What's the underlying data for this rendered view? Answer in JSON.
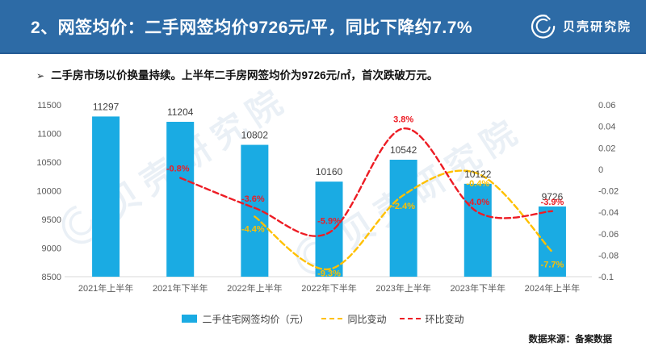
{
  "header": {
    "title": "2、网签均价：二手网签均价9726元/平，同比下降约7.7%",
    "logo_text": "贝壳研究院",
    "bg_color": "#2d6ba6"
  },
  "subtitle": {
    "bullet": "➢",
    "text": "二手房市场以价换量持续。上半年二手房网签均价为9726元/㎡，首次跌破万元。"
  },
  "watermark": {
    "text": "贝壳研究院"
  },
  "chart_data": {
    "type": "bar+line",
    "categories": [
      "2021年上半年",
      "2021年下半年",
      "2022年上半年",
      "2022年下半年",
      "2023年上半年",
      "2023年下半年",
      "2024年上半年"
    ],
    "series": [
      {
        "name": "二手住宅网签均价（元）",
        "type": "bar",
        "axis": "left",
        "color": "#1aabe3",
        "values": [
          11297,
          11204,
          10802,
          10160,
          10542,
          10122,
          9726
        ],
        "labels": [
          "11297",
          "11204",
          "10802",
          "10160",
          "10542",
          "10122",
          "9726"
        ]
      },
      {
        "name": "同比变动",
        "type": "line",
        "axis": "right",
        "color": "#ffc000",
        "dashed": true,
        "values": [
          null,
          null,
          -0.044,
          -0.093,
          -0.024,
          -0.004,
          -0.077
        ],
        "labels": [
          null,
          null,
          "-4.4%",
          "-9.3%",
          "-2.4%",
          "-0.4%",
          "-7.7%"
        ]
      },
      {
        "name": "环比变动",
        "type": "line",
        "axis": "right",
        "color": "#ed1c24",
        "dashed": true,
        "values": [
          null,
          -0.008,
          -0.036,
          -0.059,
          0.038,
          -0.04,
          -0.039
        ],
        "labels": [
          null,
          "-0.8%",
          "-3.6%",
          "-5.9%",
          "3.8%",
          "-4.0%",
          "-3.9%"
        ]
      }
    ],
    "left_axis": {
      "min": 8500,
      "max": 11500,
      "ticks": [
        "8500",
        "9000",
        "9500",
        "10000",
        "10500",
        "11000",
        "11500"
      ]
    },
    "right_axis": {
      "min": -0.1,
      "max": 0.06,
      "ticks": [
        "0.06",
        "0.04",
        "0.02",
        "0",
        "-0.02",
        "-0.04",
        "-0.06",
        "-0.08",
        "-0.1"
      ]
    },
    "legend_position": "bottom",
    "grid": false,
    "value_label_color": "#404040",
    "axis_label_color": "#595959"
  },
  "footer": {
    "source": "数据来源：备案数据"
  }
}
